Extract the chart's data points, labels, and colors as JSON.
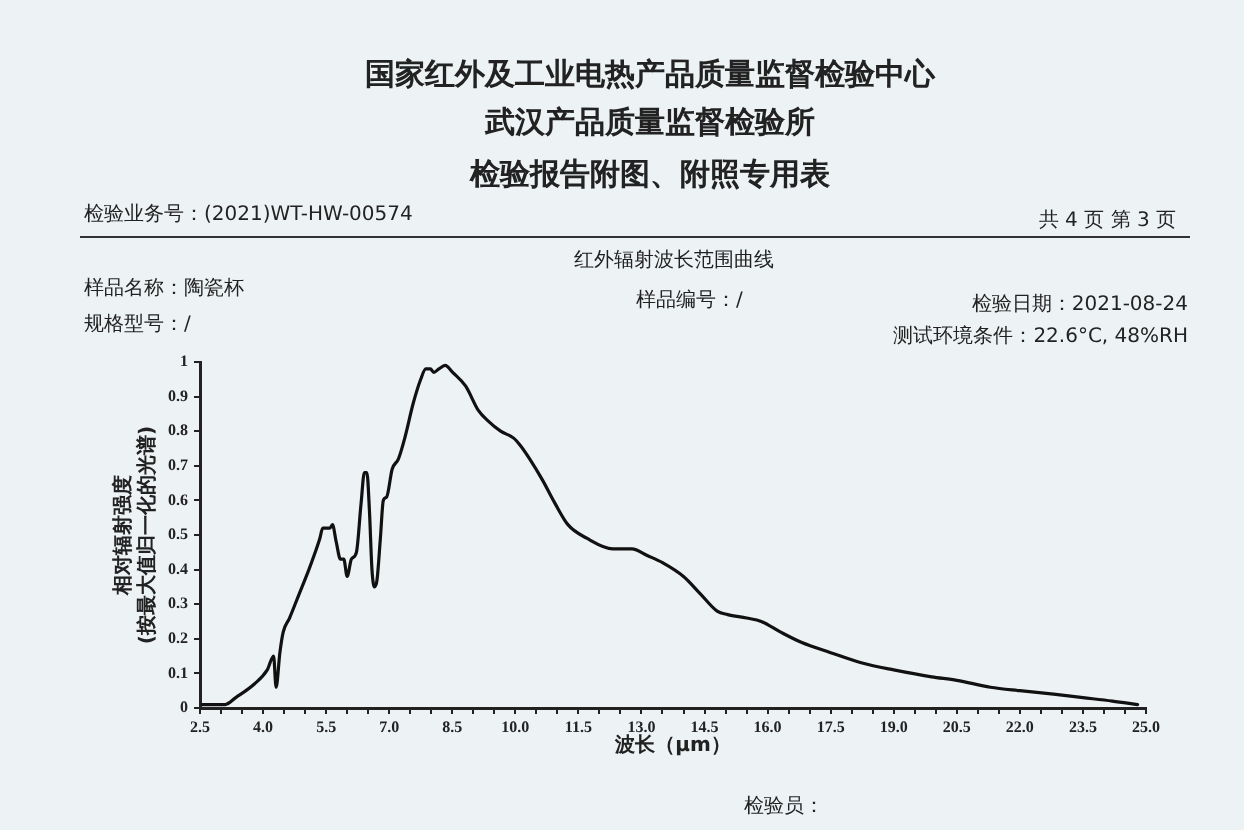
{
  "chart_data": {
    "type": "line",
    "title": "红外辐射波长范围曲线",
    "xlabel": "波长（μm）",
    "ylabel": "相对辐射强度\n(按最大值归一化的光谱)",
    "annotations": [
      "国家红外及工业电热产品质量监督检验中心",
      "武汉产品质量监督检验所",
      "检验报告附图、附照专用表",
      "检验业务号：(2021)WT-HW-00574",
      "共 4 页 第 3 页",
      "样品名称：陶瓷杯",
      "样品编号：/",
      "检验日期：2021-08-24",
      "规格型号：/",
      "测试环境条件：22.6°C, 48%RH",
      "检验员："
    ],
    "x": [
      2.55,
      2.9,
      3.1,
      3.35,
      3.8,
      4.1,
      4.25,
      4.31,
      4.4,
      4.48,
      4.63,
      4.86,
      5.09,
      5.24,
      5.35,
      5.42,
      5.59,
      5.65,
      5.74,
      5.84,
      5.92,
      6.0,
      6.1,
      6.22,
      6.33,
      6.41,
      6.47,
      6.53,
      6.59,
      6.65,
      6.71,
      6.79,
      6.86,
      6.94,
      7.07,
      7.22,
      7.37,
      7.57,
      7.75,
      7.87,
      7.98,
      8.06,
      8.18,
      8.33,
      8.51,
      8.82,
      9.12,
      9.35,
      9.65,
      9.96,
      10.11,
      10.34,
      10.64,
      10.95,
      11.25,
      11.71,
      12.32,
      12.77,
      13.15,
      13.5,
      14.0,
      14.4,
      14.8,
      15.05,
      15.5,
      15.85,
      16.3,
      16.8,
      17.5,
      18.25,
      19.0,
      19.9,
      20.5,
      21.3,
      22.0,
      22.8,
      23.5,
      24.2,
      24.8
    ],
    "values": [
      0.01,
      0.01,
      0.01,
      0.03,
      0.07,
      0.11,
      0.15,
      0.06,
      0.16,
      0.22,
      0.26,
      0.33,
      0.4,
      0.45,
      0.49,
      0.52,
      0.52,
      0.53,
      0.48,
      0.43,
      0.43,
      0.38,
      0.43,
      0.45,
      0.59,
      0.68,
      0.68,
      0.57,
      0.4,
      0.35,
      0.37,
      0.49,
      0.6,
      0.61,
      0.69,
      0.72,
      0.78,
      0.88,
      0.95,
      0.98,
      0.98,
      0.97,
      0.98,
      0.99,
      0.97,
      0.93,
      0.86,
      0.83,
      0.8,
      0.78,
      0.76,
      0.72,
      0.66,
      0.59,
      0.53,
      0.49,
      0.46,
      0.46,
      0.44,
      0.42,
      0.38,
      0.33,
      0.28,
      0.27,
      0.26,
      0.25,
      0.22,
      0.19,
      0.16,
      0.13,
      0.11,
      0.09,
      0.08,
      0.06,
      0.05,
      0.04,
      0.03,
      0.02,
      0.01
    ],
    "color": "#111111",
    "line_style": "solid",
    "xlim": [
      2.5,
      25
    ],
    "xticks": [
      2.5,
      {
        "value": 3,
        "label": null
      },
      {
        "value": 3.5,
        "label": null
      },
      {
        "value": 4,
        "label": "4.0"
      },
      {
        "value": 4.5,
        "label": null
      },
      {
        "value": 5,
        "label": null
      },
      5.5,
      {
        "value": 6,
        "label": null
      },
      {
        "value": 6.5,
        "label": null
      },
      {
        "value": 7,
        "label": "7.0"
      },
      {
        "value": 7.5,
        "label": null
      },
      {
        "value": 8,
        "label": null
      },
      8.5,
      {
        "value": 9,
        "label": null
      },
      {
        "value": 9.5,
        "label": null
      },
      {
        "value": 10,
        "label": "10.0"
      },
      {
        "value": 10.5,
        "label": null
      },
      {
        "value": 11,
        "label": null
      },
      11.5,
      {
        "value": 12,
        "label": null
      },
      {
        "value": 12.5,
        "label": null
      },
      {
        "value": 13,
        "label": "13.0"
      },
      {
        "value": 13.5,
        "label": null
      },
      {
        "value": 14,
        "label": null
      },
      14.5,
      {
        "value": 15,
        "label": null
      },
      {
        "value": 15.5,
        "label": null
      },
      {
        "value": 16,
        "label": "16.0"
      },
      {
        "value": 16.5,
        "label": null
      },
      {
        "value": 17,
        "label": null
      },
      17.5,
      {
        "value": 18,
        "label": null
      },
      {
        "value": 18.5,
        "label": null
      },
      {
        "value": 19,
        "label": "19.0"
      },
      {
        "value": 19.5,
        "label": null
      },
      {
        "value": 20,
        "label": null
      },
      20.5,
      {
        "value": 21,
        "label": null
      },
      {
        "value": 21.5,
        "label": null
      },
      {
        "value": 22,
        "label": "22.0"
      },
      {
        "value": 22.5,
        "label": null
      },
      {
        "value": 23,
        "label": null
      },
      23.5,
      {
        "value": 24,
        "label": null
      },
      {
        "value": 24.5,
        "label": null
      },
      {
        "value": 25,
        "label": "25.0"
      }
    ],
    "ylim": [
      0,
      1
    ],
    "yticks": [
      0,
      0.1,
      0.2,
      0.3,
      0.4,
      0.5,
      0.6,
      0.7,
      0.8,
      0.9,
      1
    ]
  }
}
